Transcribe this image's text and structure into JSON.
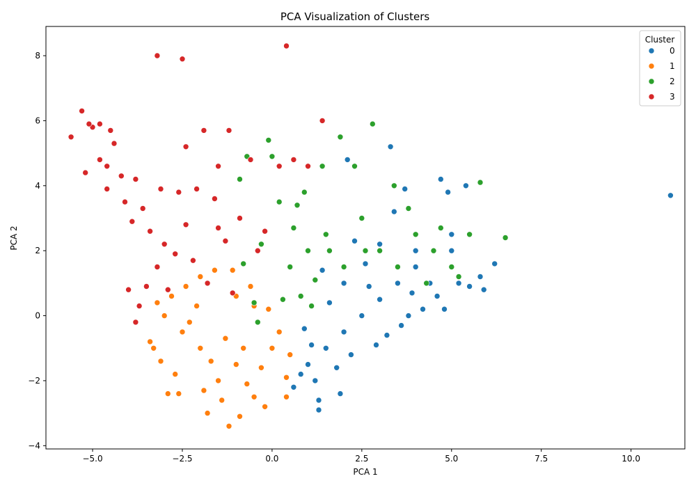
{
  "chart_data": {
    "type": "scatter",
    "title": "PCA Visualization of Clusters",
    "xlabel": "PCA 1",
    "ylabel": "PCA 2",
    "xlim": [
      -6.3,
      11.5
    ],
    "ylim": [
      -4.1,
      8.9
    ],
    "xticks": [
      -5.0,
      -2.5,
      0.0,
      2.5,
      5.0,
      7.5,
      10.0
    ],
    "xtick_labels": [
      "−5.0",
      "−2.5",
      "0.0",
      "2.5",
      "5.0",
      "7.5",
      "10.0"
    ],
    "yticks": [
      -4,
      -2,
      0,
      2,
      4,
      6,
      8
    ],
    "ytick_labels": [
      "−4",
      "−2",
      "0",
      "2",
      "4",
      "6",
      "8"
    ],
    "grid": false,
    "legend": {
      "title": "Cluster",
      "placement": "top-right"
    },
    "series": [
      {
        "name": "0",
        "color": "#1f77b4",
        "points": [
          [
            1.0,
            -1.5
          ],
          [
            1.5,
            -1.0
          ],
          [
            2.0,
            -0.5
          ],
          [
            2.5,
            0.0
          ],
          [
            3.0,
            0.5
          ],
          [
            3.5,
            1.0
          ],
          [
            4.0,
            1.5
          ],
          [
            4.5,
            2.0
          ],
          [
            5.0,
            2.5
          ],
          [
            1.2,
            -2.0
          ],
          [
            0.8,
            -1.8
          ],
          [
            2.2,
            -1.2
          ],
          [
            3.2,
            -0.6
          ],
          [
            3.8,
            0.0
          ],
          [
            4.6,
            0.6
          ],
          [
            5.2,
            1.0
          ],
          [
            5.8,
            1.2
          ],
          [
            6.2,
            1.6
          ],
          [
            5.9,
            0.8
          ],
          [
            1.6,
            0.4
          ],
          [
            2.0,
            1.0
          ],
          [
            2.6,
            1.6
          ],
          [
            3.0,
            2.2
          ],
          [
            3.4,
            3.2
          ],
          [
            3.7,
            3.9
          ],
          [
            4.7,
            4.2
          ],
          [
            5.4,
            4.0
          ],
          [
            4.9,
            3.8
          ],
          [
            3.3,
            5.2
          ],
          [
            2.1,
            4.8
          ],
          [
            1.3,
            -2.9
          ],
          [
            1.3,
            -2.6
          ],
          [
            1.9,
            -2.4
          ],
          [
            11.1,
            3.7
          ],
          [
            0.6,
            -2.2
          ],
          [
            0.9,
            -0.4
          ],
          [
            1.8,
            -1.6
          ],
          [
            2.9,
            -0.9
          ],
          [
            4.2,
            0.2
          ],
          [
            4.4,
            1.0
          ],
          [
            3.6,
            -0.3
          ],
          [
            2.7,
            0.9
          ],
          [
            1.4,
            1.4
          ],
          [
            2.3,
            2.3
          ],
          [
            4.0,
            2.0
          ],
          [
            5.0,
            2.0
          ],
          [
            5.5,
            0.9
          ],
          [
            4.8,
            0.2
          ],
          [
            3.9,
            0.7
          ],
          [
            1.1,
            -0.9
          ]
        ]
      },
      {
        "name": "1",
        "color": "#ff7f0e",
        "points": [
          [
            -1.5,
            -2.0
          ],
          [
            -1.0,
            -1.5
          ],
          [
            -2.0,
            -1.0
          ],
          [
            -0.5,
            -2.5
          ],
          [
            -1.2,
            -3.4
          ],
          [
            -2.5,
            -0.5
          ],
          [
            -3.0,
            0.0
          ],
          [
            -2.8,
            0.6
          ],
          [
            -2.0,
            1.2
          ],
          [
            -1.6,
            1.4
          ],
          [
            -1.0,
            0.6
          ],
          [
            -0.5,
            0.3
          ],
          [
            0.2,
            -0.5
          ],
          [
            0.5,
            -1.2
          ],
          [
            0.4,
            -1.9
          ],
          [
            -0.2,
            -2.8
          ],
          [
            -0.9,
            -3.1
          ],
          [
            -1.8,
            -3.0
          ],
          [
            -2.6,
            -2.4
          ],
          [
            -3.1,
            -1.4
          ],
          [
            -3.4,
            -0.8
          ],
          [
            -3.2,
            0.4
          ],
          [
            -2.3,
            -0.2
          ],
          [
            -1.3,
            -0.7
          ],
          [
            -0.8,
            -1.0
          ],
          [
            -0.3,
            -1.6
          ],
          [
            -1.9,
            -2.3
          ],
          [
            -2.7,
            -1.8
          ],
          [
            -1.1,
            1.4
          ],
          [
            -0.6,
            0.9
          ],
          [
            -2.4,
            0.9
          ],
          [
            -1.4,
            -2.6
          ],
          [
            0.0,
            -1.0
          ],
          [
            -0.1,
            0.2
          ],
          [
            -2.1,
            0.3
          ],
          [
            -3.3,
            -1.0
          ],
          [
            -1.7,
            -1.4
          ],
          [
            -0.7,
            -2.1
          ],
          [
            0.4,
            -2.5
          ],
          [
            -2.9,
            -2.4
          ]
        ]
      },
      {
        "name": "2",
        "color": "#2ca02c",
        "points": [
          [
            0.5,
            1.5
          ],
          [
            1.0,
            2.0
          ],
          [
            1.5,
            2.5
          ],
          [
            2.0,
            1.5
          ],
          [
            2.5,
            3.0
          ],
          [
            3.0,
            2.0
          ],
          [
            3.5,
            1.5
          ],
          [
            4.0,
            2.5
          ],
          [
            4.5,
            2.0
          ],
          [
            5.0,
            1.5
          ],
          [
            5.5,
            2.5
          ],
          [
            6.5,
            2.4
          ],
          [
            5.8,
            4.1
          ],
          [
            5.2,
            1.2
          ],
          [
            4.7,
            2.7
          ],
          [
            3.4,
            4.0
          ],
          [
            2.8,
            5.9
          ],
          [
            1.9,
            5.5
          ],
          [
            1.4,
            4.6
          ],
          [
            0.7,
            3.4
          ],
          [
            0.0,
            4.9
          ],
          [
            -0.1,
            5.4
          ],
          [
            -0.7,
            4.9
          ],
          [
            -0.9,
            4.2
          ],
          [
            0.2,
            3.5
          ],
          [
            0.8,
            0.6
          ],
          [
            1.2,
            1.1
          ],
          [
            0.3,
            0.5
          ],
          [
            -0.3,
            2.2
          ],
          [
            -0.8,
            1.6
          ],
          [
            -0.5,
            0.4
          ],
          [
            0.9,
            3.8
          ],
          [
            2.3,
            4.6
          ],
          [
            3.8,
            3.3
          ],
          [
            4.3,
            1.0
          ],
          [
            2.6,
            2.0
          ],
          [
            1.6,
            2.0
          ],
          [
            1.1,
            0.3
          ],
          [
            -0.4,
            -0.2
          ],
          [
            0.6,
            2.7
          ]
        ]
      },
      {
        "name": "3",
        "color": "#d62728",
        "points": [
          [
            -5.3,
            6.3
          ],
          [
            -5.6,
            5.5
          ],
          [
            -5.0,
            5.8
          ],
          [
            -4.8,
            5.9
          ],
          [
            -4.5,
            5.7
          ],
          [
            -4.4,
            5.3
          ],
          [
            -5.2,
            4.4
          ],
          [
            -4.2,
            4.3
          ],
          [
            -4.6,
            3.9
          ],
          [
            -3.8,
            4.2
          ],
          [
            -4.1,
            3.5
          ],
          [
            -3.6,
            3.3
          ],
          [
            -3.9,
            2.9
          ],
          [
            -3.4,
            2.6
          ],
          [
            -3.0,
            2.2
          ],
          [
            -2.7,
            1.9
          ],
          [
            -3.2,
            1.5
          ],
          [
            -3.5,
            0.9
          ],
          [
            -2.9,
            0.8
          ],
          [
            -3.7,
            0.3
          ],
          [
            -3.8,
            -0.2
          ],
          [
            -4.0,
            0.8
          ],
          [
            -3.2,
            8.0
          ],
          [
            -2.5,
            7.9
          ],
          [
            0.4,
            8.3
          ],
          [
            1.4,
            6.0
          ],
          [
            -1.2,
            5.7
          ],
          [
            -1.9,
            5.7
          ],
          [
            -2.4,
            5.2
          ],
          [
            -1.5,
            4.6
          ],
          [
            -0.6,
            4.8
          ],
          [
            0.6,
            4.8
          ],
          [
            1.0,
            4.6
          ],
          [
            0.2,
            4.6
          ],
          [
            -2.1,
            3.9
          ],
          [
            -1.6,
            3.6
          ],
          [
            -0.9,
            3.0
          ],
          [
            -0.2,
            2.6
          ],
          [
            -1.3,
            2.3
          ],
          [
            -2.4,
            2.8
          ],
          [
            -2.2,
            1.7
          ],
          [
            -1.8,
            1.0
          ],
          [
            -1.5,
            2.7
          ],
          [
            -2.6,
            3.8
          ],
          [
            -3.1,
            3.9
          ],
          [
            -4.6,
            4.6
          ],
          [
            -4.8,
            4.8
          ],
          [
            -5.1,
            5.9
          ],
          [
            -1.1,
            0.7
          ],
          [
            -0.4,
            2.0
          ]
        ]
      }
    ]
  }
}
